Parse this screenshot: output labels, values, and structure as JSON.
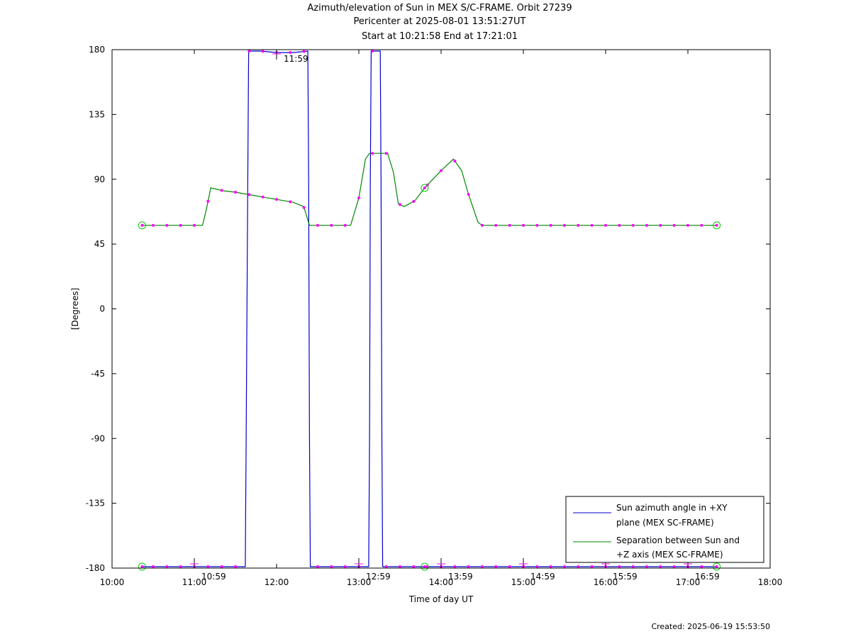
{
  "header": {
    "title": "Azimuth/elevation of Sun in MEX S/C-FRAME.  Orbit 27239",
    "pericenter": "Pericenter at 2025-08-01 13:51:27UT",
    "span": "Start at 10:21:58 End at 17:21:01"
  },
  "footer": {
    "created": "Created: 2025-06-19 15:53:50"
  },
  "colors": {
    "azimuth": "#0000cc",
    "separation": "#008800",
    "marker": "#ff00ff",
    "circle": "#00cc00"
  },
  "chart_data": {
    "type": "line",
    "xlabel": "Time of day UT",
    "ylabel": "[Degrees]",
    "xlim": [
      10.0,
      18.0
    ],
    "ylim": [
      -180,
      180
    ],
    "x_ticks": [
      10,
      11,
      12,
      13,
      14,
      15,
      16,
      17,
      18
    ],
    "x_tick_labels": [
      "10:00",
      "11:00",
      "12:00",
      "13:00",
      "14:00",
      "15:00",
      "16:00",
      "17:00",
      "18:00"
    ],
    "y_ticks": [
      180,
      135,
      90,
      45,
      0,
      -45,
      -90,
      -135,
      -180
    ],
    "y_tick_labels": [
      "180",
      "135",
      "90",
      "45",
      "0",
      "-45",
      "-90",
      "-135",
      "-180"
    ],
    "legend_position": "bottom-right",
    "series": [
      {
        "name": "Sun azimuth angle in +XY plane (MEX SC-FRAME)",
        "legend_lines": [
          "Sun azimuth angle in +XY",
          "plane (MEX SC-FRAME)"
        ],
        "x": [
          10.366,
          11.0,
          11.5,
          11.62,
          11.63,
          11.65,
          11.66,
          11.8,
          12.0,
          12.2,
          12.38,
          12.39,
          12.4,
          12.41,
          12.43,
          13.0,
          13.1,
          13.12,
          13.13,
          13.14,
          13.15,
          13.26,
          13.27,
          13.28,
          13.29,
          13.3,
          14.0,
          15.0,
          16.0,
          17.0,
          17.35
        ],
        "y": [
          -179,
          -179,
          -179,
          -179,
          -90,
          90,
          179,
          179,
          178,
          178,
          179,
          90,
          -90,
          -179,
          -179,
          -179,
          -179,
          -179,
          -90,
          90,
          179,
          179,
          90,
          -90,
          -179,
          -179,
          -179,
          -179,
          -179,
          -179,
          -179
        ]
      },
      {
        "name": "Separation between Sun and +Z axis (MEX SC-FRAME)",
        "legend_lines": [
          "Separation between Sun and",
          "+Z axis (MEX SC-FRAME)"
        ],
        "x": [
          10.366,
          10.5,
          11.0,
          11.1,
          11.15,
          11.2,
          11.35,
          11.5,
          11.7,
          12.0,
          12.2,
          12.33,
          12.4,
          12.45,
          12.6,
          12.9,
          13.0,
          13.08,
          13.13,
          13.2,
          13.35,
          13.42,
          13.48,
          13.55,
          13.68,
          13.8,
          14.0,
          14.15,
          14.25,
          14.33,
          14.45,
          14.5,
          15.0,
          16.0,
          17.0,
          17.35
        ],
        "y": [
          58,
          58,
          58,
          58,
          70,
          84,
          82,
          81,
          79,
          76,
          74,
          71,
          58,
          58,
          58,
          58,
          77,
          104,
          108,
          108,
          108,
          95,
          73,
          71,
          75,
          84,
          96,
          104,
          96,
          80,
          60,
          58,
          58,
          58,
          58,
          58
        ]
      }
    ],
    "annotations": [
      {
        "x": 12.0,
        "y": 180,
        "label": "11:59"
      },
      {
        "x": 11.0,
        "y": -180,
        "label": "10:59"
      },
      {
        "x": 13.0,
        "y": -180,
        "label": "12:59"
      },
      {
        "x": 14.0,
        "y": -180,
        "label": "13:59"
      },
      {
        "x": 15.0,
        "y": -180,
        "label": "14:59"
      },
      {
        "x": 16.0,
        "y": -180,
        "label": "15:59"
      },
      {
        "x": 17.0,
        "y": -180,
        "label": "16:59"
      }
    ]
  }
}
